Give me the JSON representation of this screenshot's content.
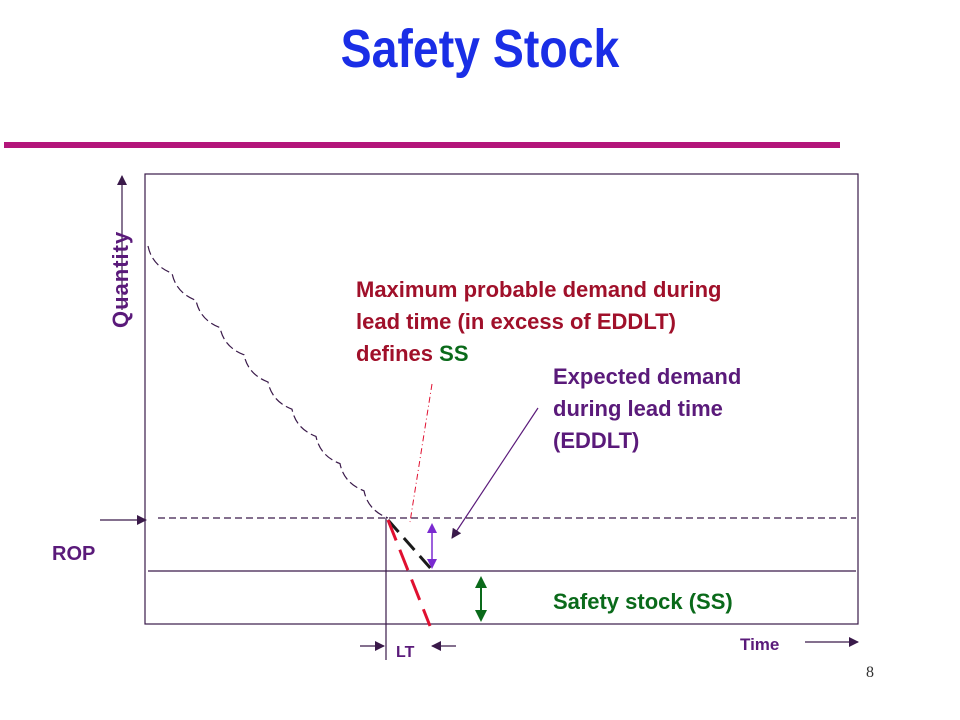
{
  "title": "Safety Stock",
  "page_number": "8",
  "axes": {
    "y_label": "Quantity",
    "x_label": "Time"
  },
  "labels": {
    "rop": "ROP",
    "lt": "LT",
    "max_demand": [
      "Maximum probable demand during",
      "lead time (in excess of EDDLT)",
      "defines "
    ],
    "max_demand_ss": "SS",
    "expected_demand": [
      "Expected demand",
      "during lead time",
      "(EDDLT)"
    ],
    "safety_stock": "Safety stock (SS)"
  },
  "colors": {
    "title": "#1a2ee6",
    "title_rule": "#b3157a",
    "frame": "#3a1a4a",
    "max_demand_text": "#a0102a",
    "ss_text_green": "#0a6a1a",
    "expected_text": "#5a1a7a",
    "safety_stock_text": "#0a6a1a",
    "axis_text": "#5a1a7a",
    "red_dash": "#e01030",
    "green_arrow": "#0a6a1a",
    "purple_arrow": "#7a2ad0"
  }
}
